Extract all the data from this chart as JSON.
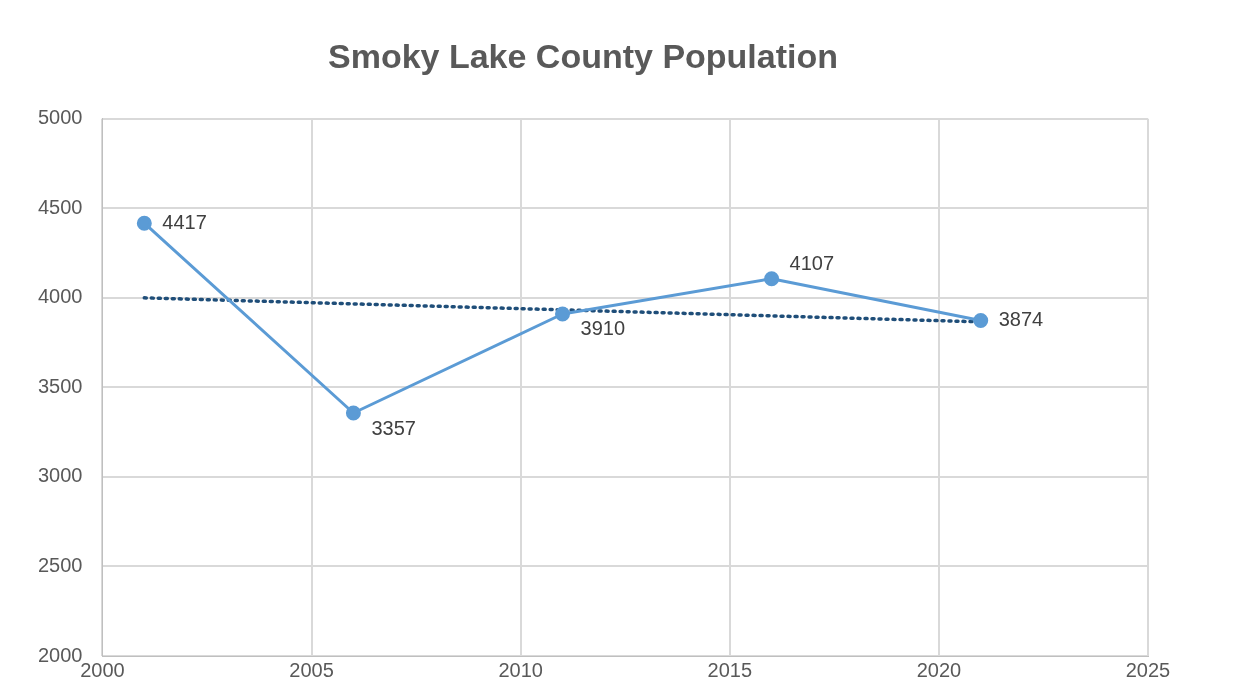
{
  "chart_data": {
    "type": "line",
    "title": "Smoky Lake County Population",
    "xlim": [
      2000,
      2025
    ],
    "xticks": [
      2000,
      2005,
      2010,
      2015,
      2020,
      2025
    ],
    "ylim": [
      2000,
      5000
    ],
    "yticks": [
      2000,
      2500,
      3000,
      3500,
      4000,
      4500,
      5000
    ],
    "grid": true,
    "legend": false,
    "series": [
      {
        "type": "line",
        "color": "#5b9bd5",
        "x": [
          2001,
          2006,
          2011,
          2016,
          2021
        ],
        "values": [
          4417,
          3357,
          3910,
          4107,
          3874
        ],
        "value_labels": [
          "4417",
          "3357",
          "3910",
          "4107",
          "3874"
        ],
        "marker": "circle",
        "line_style": "solid"
      },
      {
        "type": "line",
        "color": "#1f4e79",
        "x": [
          2001,
          2021
        ],
        "values": [
          4000,
          3866
        ],
        "marker": "none",
        "line_style": "dotted"
      }
    ]
  }
}
